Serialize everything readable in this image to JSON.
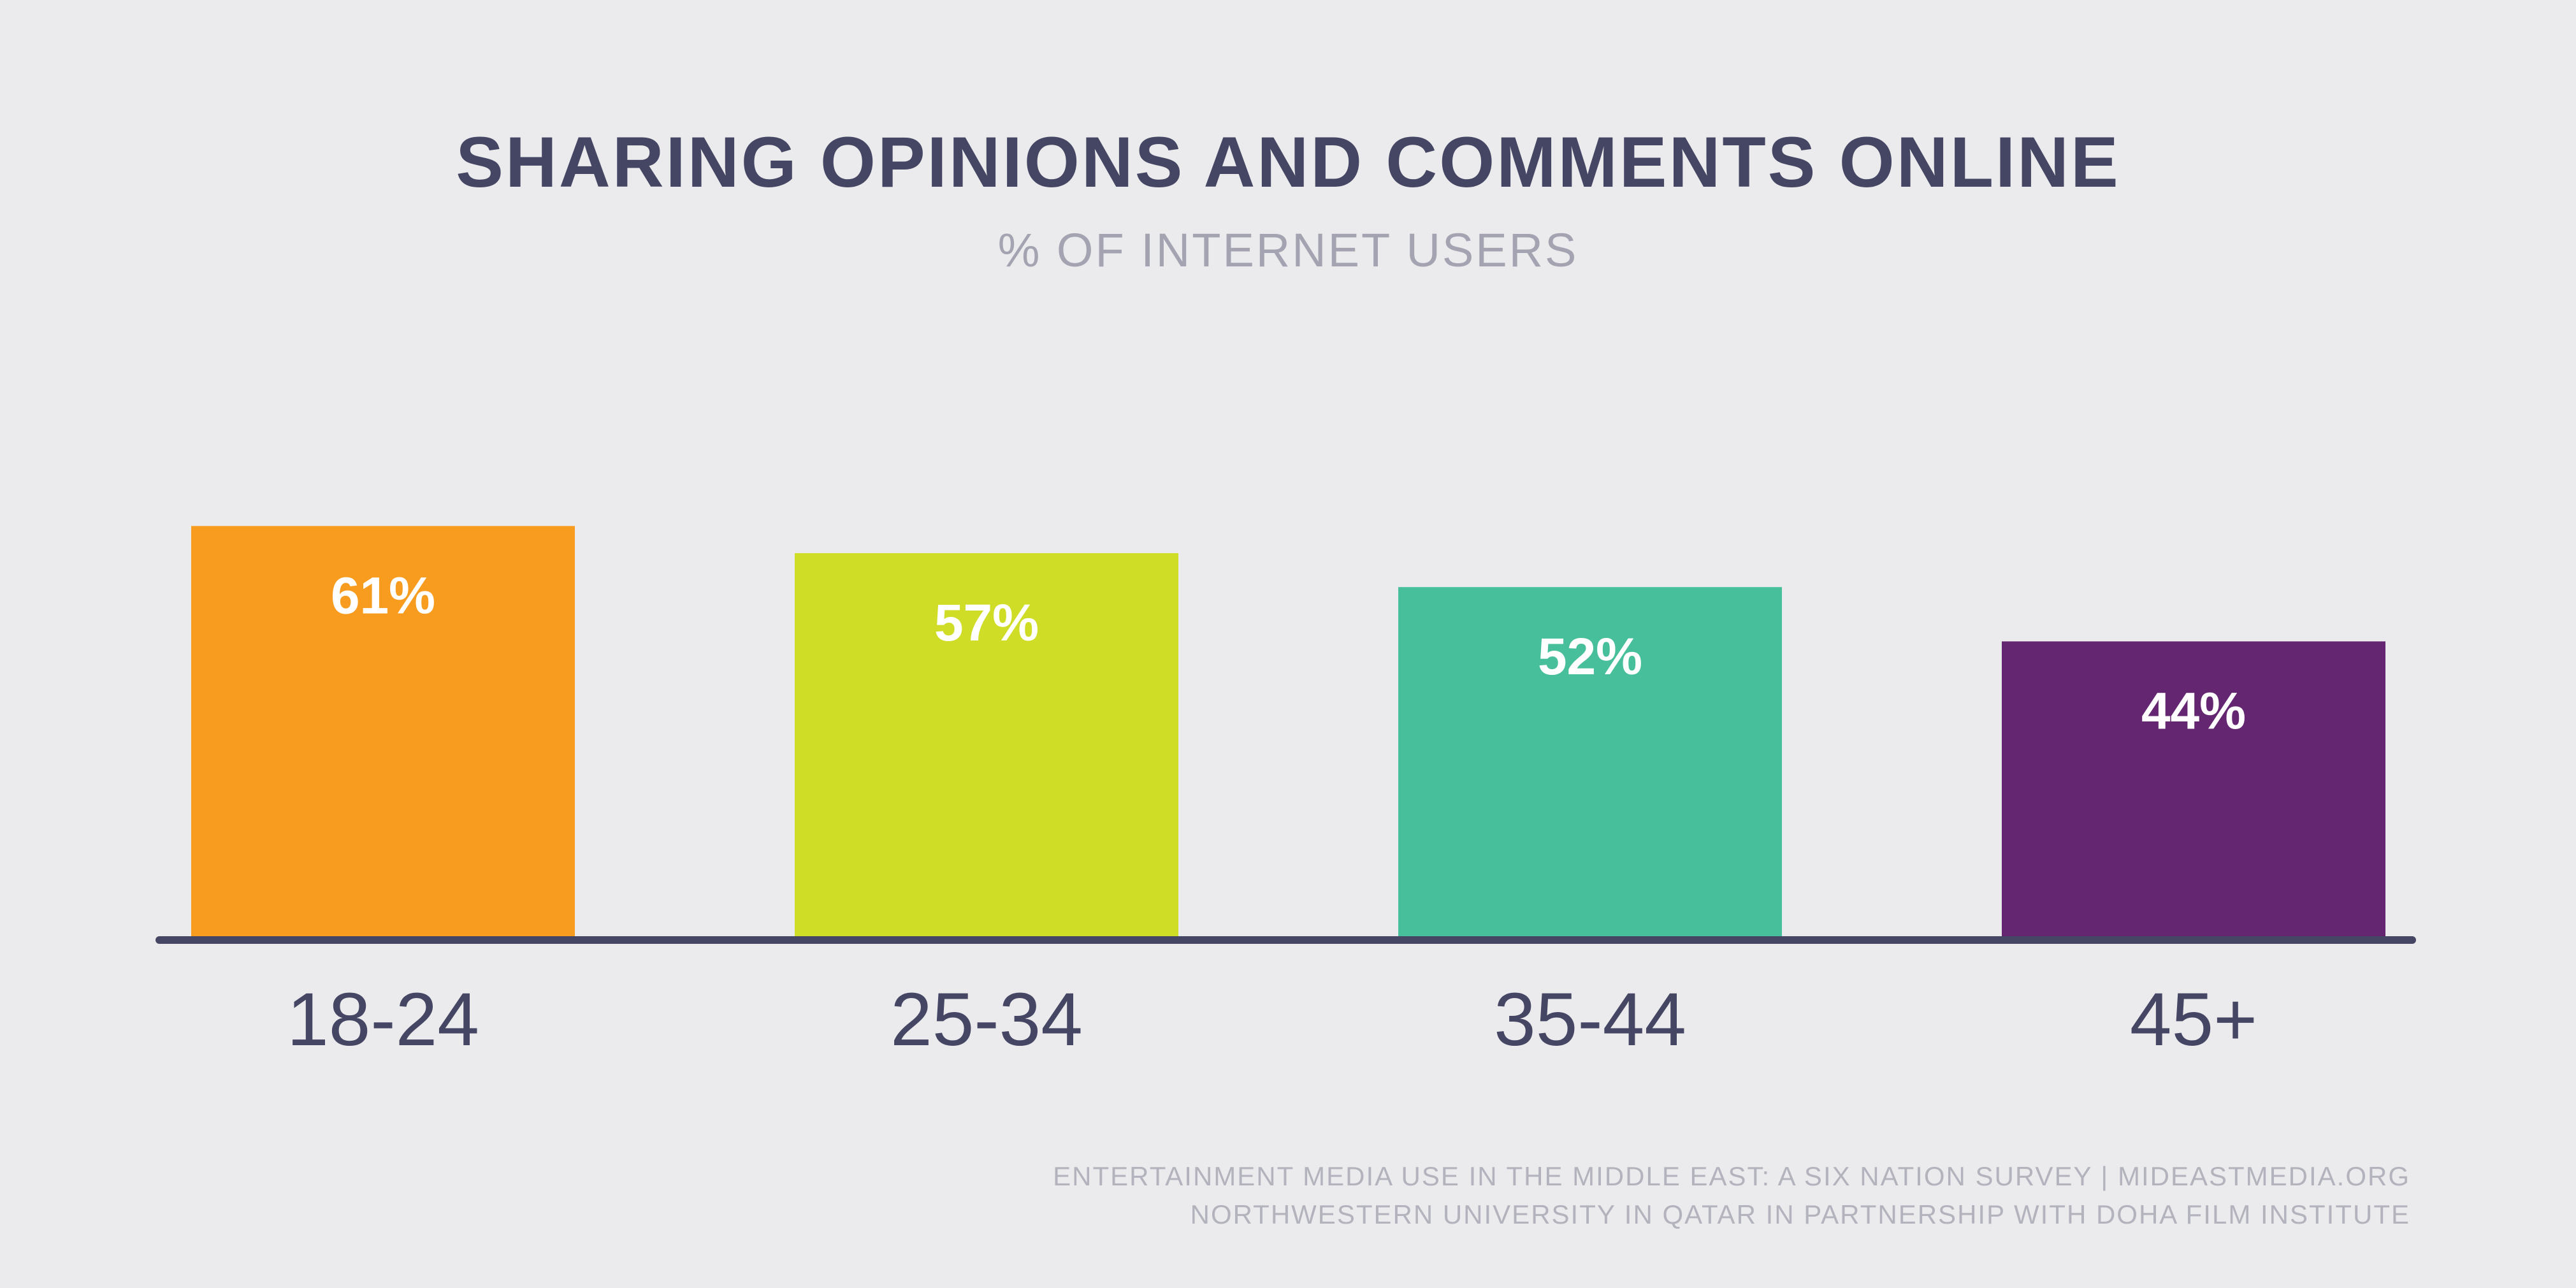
{
  "header": {
    "title": "SHARING OPINIONS AND COMMENTS ONLINE",
    "subtitle": "% OF INTERNET USERS"
  },
  "chart_data": {
    "type": "bar",
    "title": "SHARING OPINIONS AND COMMENTS ONLINE",
    "subtitle": "% OF INTERNET USERS",
    "categories": [
      "18-24",
      "25-34",
      "35-44",
      "45+"
    ],
    "values": [
      61,
      57,
      52,
      44
    ],
    "value_labels": [
      "61%",
      "57%",
      "52%",
      "44%"
    ],
    "colors": [
      "#f89c1f",
      "#d0dd27",
      "#48bf9b",
      "#642670"
    ],
    "ylim": [
      0,
      100
    ],
    "grid": false,
    "legend": "none"
  },
  "footer": {
    "line1": "ENTERTAINMENT MEDIA USE IN THE MIDDLE EAST: A SIX NATION SURVEY | MIDEASTMEDIA.ORG",
    "line2": "NORTHWESTERN UNIVERSITY IN QATAR IN PARTNERSHIP WITH DOHA FILM INSTITUTE"
  }
}
